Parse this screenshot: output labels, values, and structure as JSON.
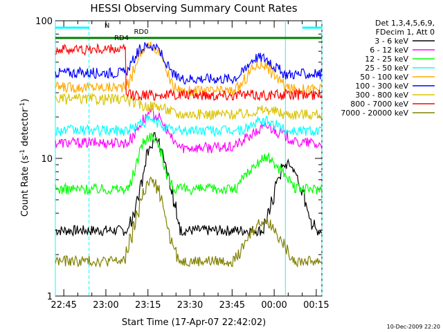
{
  "chart_data": {
    "type": "line",
    "title": "HESSI Observing Summary Count Rates",
    "xlabel": "Start Time (17-Apr-07 22:42:02)",
    "ylabel_pre": "Count Rate (s",
    "ylabel_sup": "-1",
    "ylabel_post": " detector",
    "ylabel_sup2": "-1",
    "ylabel_end": ")",
    "yscale": "log",
    "ylim": [
      1,
      100
    ],
    "xlim_minutes": [
      0,
      95
    ],
    "ytick_labels": [
      {
        "value": 100,
        "label": "100"
      },
      {
        "value": 10,
        "label": "10"
      },
      {
        "value": 1,
        "label": "1"
      }
    ],
    "xtick_labels": [
      {
        "minute": 3,
        "label": "22:45"
      },
      {
        "minute": 18,
        "label": "23:00"
      },
      {
        "minute": 33,
        "label": "23:15"
      },
      {
        "minute": 48,
        "label": "23:30"
      },
      {
        "minute": 63,
        "label": "23:45"
      },
      {
        "minute": 78,
        "label": "00:00"
      },
      {
        "minute": 93,
        "label": "00:15"
      }
    ],
    "legend_header": [
      "Det 1,3,4,5,6,9,",
      "FDecim 1, Att 0"
    ],
    "legend_position": "right",
    "series": [
      {
        "name": "3 - 6 keV",
        "color": "#000000",
        "values": [
          3,
          3,
          3,
          3,
          3,
          3,
          3,
          3,
          3,
          3,
          3,
          3,
          3,
          3,
          3,
          3,
          3,
          3,
          3,
          3,
          3,
          3,
          3.5,
          4,
          5,
          6.5,
          8.5,
          11,
          13,
          14.5,
          14,
          12,
          10,
          8,
          6,
          4.5,
          3.5,
          3,
          3,
          3,
          3,
          3,
          3,
          3,
          3,
          3,
          3,
          3,
          3,
          3,
          3,
          3,
          3,
          3,
          3,
          3,
          3,
          3,
          3,
          3,
          3,
          3,
          3.5,
          4,
          5,
          6.5,
          7.5,
          8.5,
          9,
          9,
          8.5,
          7.5,
          6.5,
          5.5,
          4.5,
          3.8,
          3.3,
          3,
          3,
          3
        ]
      },
      {
        "name": "6 - 12 keV",
        "color": "#ff00ff",
        "values": [
          13,
          13,
          13,
          13,
          13,
          13,
          13,
          13,
          13,
          13,
          13,
          13,
          13,
          13,
          13,
          13,
          13,
          13,
          13,
          13,
          13,
          13,
          14,
          15,
          16.5,
          18,
          19.5,
          21,
          21.5,
          21,
          20,
          18.5,
          17,
          15.5,
          14,
          13,
          12.5,
          12,
          12,
          12,
          12,
          12,
          12,
          12,
          12,
          12,
          12,
          12,
          12,
          12,
          12,
          12,
          12,
          12.5,
          13,
          13,
          14,
          14.5,
          15,
          15.5,
          16,
          16.5,
          17,
          17,
          16.5,
          16,
          15.5,
          15,
          14.5,
          14,
          13.5,
          13,
          13,
          13,
          13,
          13,
          13,
          12.5,
          12.5,
          12.5
        ]
      },
      {
        "name": "12 - 25 keV",
        "color": "#00ff00",
        "values": [
          6,
          6,
          6,
          6,
          6,
          6,
          6,
          6,
          6,
          6,
          6,
          6,
          6,
          6,
          6,
          6,
          6,
          6,
          6,
          6,
          6,
          6,
          6.5,
          8,
          10,
          12,
          13.5,
          14.5,
          14.5,
          14,
          13,
          11,
          9,
          7.5,
          6.5,
          6,
          6,
          6,
          6,
          6,
          6,
          6,
          6,
          6,
          6,
          6,
          6,
          6,
          6,
          6,
          6,
          6,
          6,
          6,
          6.5,
          7,
          7.5,
          8,
          8.5,
          9,
          9.5,
          10,
          10,
          10,
          9.5,
          9,
          8.5,
          8,
          7.5,
          7,
          6.5,
          6,
          6,
          6,
          6,
          6,
          6,
          6,
          6,
          6
        ]
      },
      {
        "name": "25 - 50 keV",
        "color": "#00ffff",
        "values": [
          16,
          16,
          16,
          16,
          16,
          16,
          16,
          16,
          16,
          16,
          16,
          16,
          16,
          16,
          16,
          16,
          16,
          16,
          16,
          16,
          16,
          16,
          16.5,
          17,
          17.5,
          18,
          18.5,
          19,
          19,
          18.5,
          18,
          17.5,
          17,
          16.5,
          16,
          16,
          16,
          16,
          16,
          16,
          16,
          16,
          16,
          16,
          16,
          16,
          16,
          16,
          16,
          16,
          16,
          16,
          16,
          16,
          16,
          16,
          16.5,
          17,
          17.5,
          18,
          18.5,
          18.5,
          18.5,
          18.5,
          18,
          17.5,
          17,
          16.5,
          16,
          16,
          16,
          16,
          16,
          16,
          16,
          16,
          16,
          16,
          16,
          16
        ]
      },
      {
        "name": "50 - 100 keV",
        "color": "#ffaa00",
        "values": [
          33,
          33,
          33,
          33,
          33,
          33,
          33,
          33,
          33,
          33,
          33,
          33,
          33,
          33,
          33,
          33,
          33,
          33,
          33,
          33,
          33,
          35,
          38,
          45,
          52,
          58,
          63,
          65,
          65,
          64,
          60,
          54,
          47,
          41,
          36,
          33,
          32,
          31,
          31,
          31,
          31,
          31,
          31,
          31,
          31,
          31,
          31,
          31,
          31,
          31,
          31,
          31,
          31,
          32,
          33,
          35,
          38,
          42,
          45,
          47,
          48,
          48,
          47,
          45,
          42,
          40,
          37,
          35,
          33,
          32,
          32,
          32,
          32,
          32,
          32,
          32,
          32,
          32,
          32,
          32
        ]
      },
      {
        "name": "100 - 300 keV",
        "color": "#0000ff",
        "values": [
          42,
          42,
          42,
          42,
          42,
          42,
          42,
          42,
          42,
          42,
          42,
          42,
          42,
          42,
          42,
          42,
          42,
          42,
          42,
          42,
          42,
          44,
          47,
          53,
          58,
          62,
          65,
          66,
          66,
          65,
          62,
          57,
          51,
          46,
          42,
          40,
          38,
          38,
          38,
          38,
          38,
          38,
          38,
          38,
          38,
          38,
          38,
          38,
          38,
          38,
          38,
          38,
          38,
          39,
          40,
          42,
          45,
          49,
          52,
          54,
          54,
          54,
          53,
          51,
          48,
          46,
          44,
          42,
          41,
          41,
          41,
          41,
          41,
          41,
          41,
          41,
          41,
          41,
          41,
          41
        ]
      },
      {
        "name": "300 - 800 keV",
        "color": "#d9c300",
        "values": [
          27,
          27,
          27,
          27,
          27,
          27,
          27,
          27,
          27,
          27,
          27,
          27,
          27,
          27,
          27,
          27,
          27,
          27,
          27,
          27,
          27,
          27,
          26,
          25.5,
          25,
          24.5,
          24,
          24,
          24,
          24,
          24,
          23.5,
          23,
          22.5,
          22,
          21.5,
          21,
          21,
          21,
          21,
          21,
          21,
          21,
          21,
          21,
          21,
          21,
          21,
          21,
          21,
          21,
          21,
          21,
          21,
          21,
          21,
          21,
          21,
          22,
          22,
          22.5,
          22.5,
          22.5,
          22.5,
          22,
          22,
          21.5,
          21,
          21,
          21,
          21,
          21,
          21,
          21,
          21,
          21,
          21,
          21,
          21,
          21
        ]
      },
      {
        "name": "800 - 7000 keV",
        "color": "#ff0000",
        "values": [
          62,
          62,
          62,
          62,
          62,
          62,
          62,
          62,
          62,
          62,
          62,
          62,
          62,
          62,
          62,
          62,
          62,
          62,
          62,
          62,
          62,
          29,
          29,
          29,
          29,
          29,
          29,
          29,
          29,
          29,
          29,
          29,
          29,
          29,
          29,
          29,
          29,
          29,
          29,
          29,
          29,
          29,
          29,
          29,
          29,
          29,
          29,
          29,
          29,
          29,
          29,
          29,
          29,
          29,
          29,
          29,
          29,
          29,
          29,
          29,
          29,
          29,
          29,
          29,
          29,
          29,
          29,
          29,
          29,
          29,
          29,
          29,
          29,
          29,
          29,
          29,
          29,
          29,
          29,
          29
        ]
      },
      {
        "name": "7000 - 20000 keV",
        "color": "#808000",
        "values": [
          1.8,
          1.8,
          1.8,
          1.8,
          1.8,
          1.8,
          1.8,
          1.8,
          1.8,
          1.8,
          1.8,
          1.8,
          1.8,
          1.8,
          1.8,
          1.8,
          1.8,
          1.8,
          1.8,
          1.8,
          1.8,
          2.2,
          2.6,
          3.2,
          4,
          5,
          5.8,
          6.5,
          6.8,
          6.6,
          6,
          5,
          4,
          3.2,
          2.6,
          2.2,
          1.9,
          1.8,
          1.8,
          1.8,
          1.8,
          1.8,
          1.8,
          1.8,
          1.8,
          1.8,
          1.8,
          1.8,
          1.8,
          1.8,
          1.8,
          1.8,
          1.8,
          1.9,
          2,
          2.2,
          2.4,
          2.7,
          3,
          3.2,
          3.4,
          3.5,
          3.5,
          3.4,
          3.2,
          3,
          2.7,
          2.4,
          2.2,
          2,
          1.9,
          1.8,
          1.8,
          1.8,
          1.8,
          1.8,
          1.8,
          1.8,
          1.8,
          1.8
        ]
      }
    ],
    "annotations": [
      {
        "text": "N",
        "color": "#00ffff"
      },
      {
        "text": "RD0",
        "color": "#008000"
      },
      {
        "text": "RD4",
        "color": "#008000"
      }
    ],
    "night_intervals_minutes": [
      [
        0,
        12
      ],
      [
        88,
        95
      ]
    ],
    "saa_lines_minutes": [
      0,
      12,
      82,
      95
    ],
    "attenuator_level_line": 75,
    "grid": false
  },
  "footer_date": "10-Dec-2009 22:20"
}
